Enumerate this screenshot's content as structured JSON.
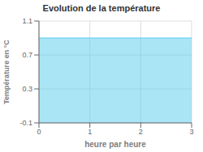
{
  "chart_data": {
    "type": "area",
    "title": "Evolution de la température",
    "x_label": "heure par heure",
    "y_label": "Température en °C",
    "x": [
      0,
      3
    ],
    "values": [
      0.9,
      0.9
    ],
    "color": "#55ccee",
    "xlim": [
      0,
      3
    ],
    "ylim": [
      -0.1,
      1.1
    ],
    "xticks": [
      0,
      1,
      2,
      3
    ],
    "yticks": [
      -0.1,
      0.3,
      0.7,
      1.1
    ],
    "grid": true
  }
}
